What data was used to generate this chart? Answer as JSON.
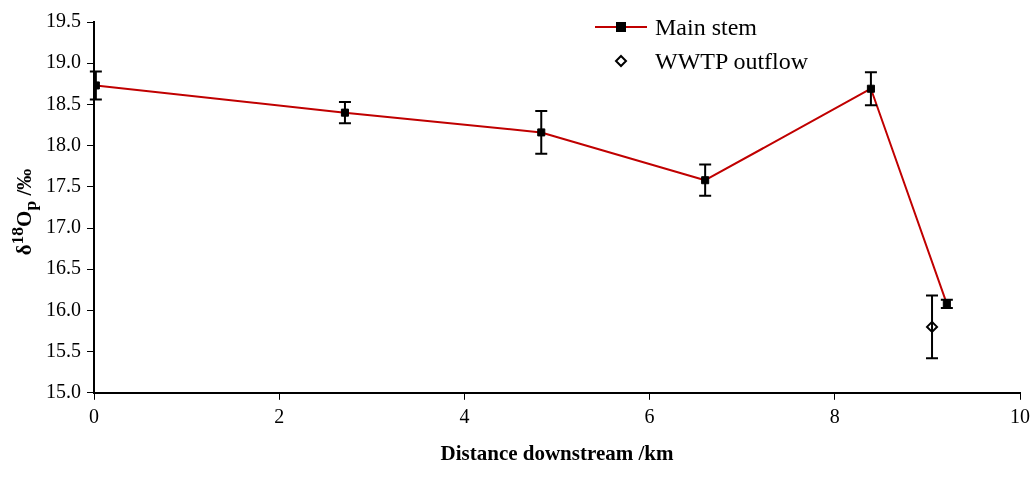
{
  "chart_data": {
    "type": "scatter",
    "xlabel": "Distance downstream /km",
    "ylabel": "δ$^{18}$O$_{p}$ /‰",
    "series": [
      {
        "name": "Main stem",
        "type": "line",
        "color": "#c00000",
        "marker": "square",
        "x": [
          0.02,
          2.71,
          4.83,
          6.6,
          8.39,
          9.21
        ],
        "values": [
          18.73,
          18.4,
          18.16,
          17.58,
          18.69,
          16.08
        ],
        "errors": [
          0.17,
          0.13,
          0.26,
          0.19,
          0.2,
          0.05
        ]
      },
      {
        "name": "WWTP outflow",
        "type": "scatter",
        "color": "#000000",
        "marker": "diamond",
        "x": [
          9.05
        ],
        "values": [
          15.8
        ],
        "errors": [
          0.38
        ]
      }
    ],
    "xlim": [
      0,
      10
    ],
    "xticks": [
      0,
      2,
      4,
      6,
      8,
      10
    ],
    "ylim": [
      15,
      19.5
    ],
    "yticks": [
      {
        "value": 15,
        "label": "15.0"
      },
      15.5,
      {
        "value": 16,
        "label": "16.0"
      },
      16.5,
      {
        "value": 17,
        "label": "17.0"
      },
      17.5,
      {
        "value": 18,
        "label": "18.0"
      },
      18.5,
      {
        "value": 19,
        "label": "19.0"
      },
      19.5
    ],
    "grid": false,
    "legend": "top right"
  }
}
